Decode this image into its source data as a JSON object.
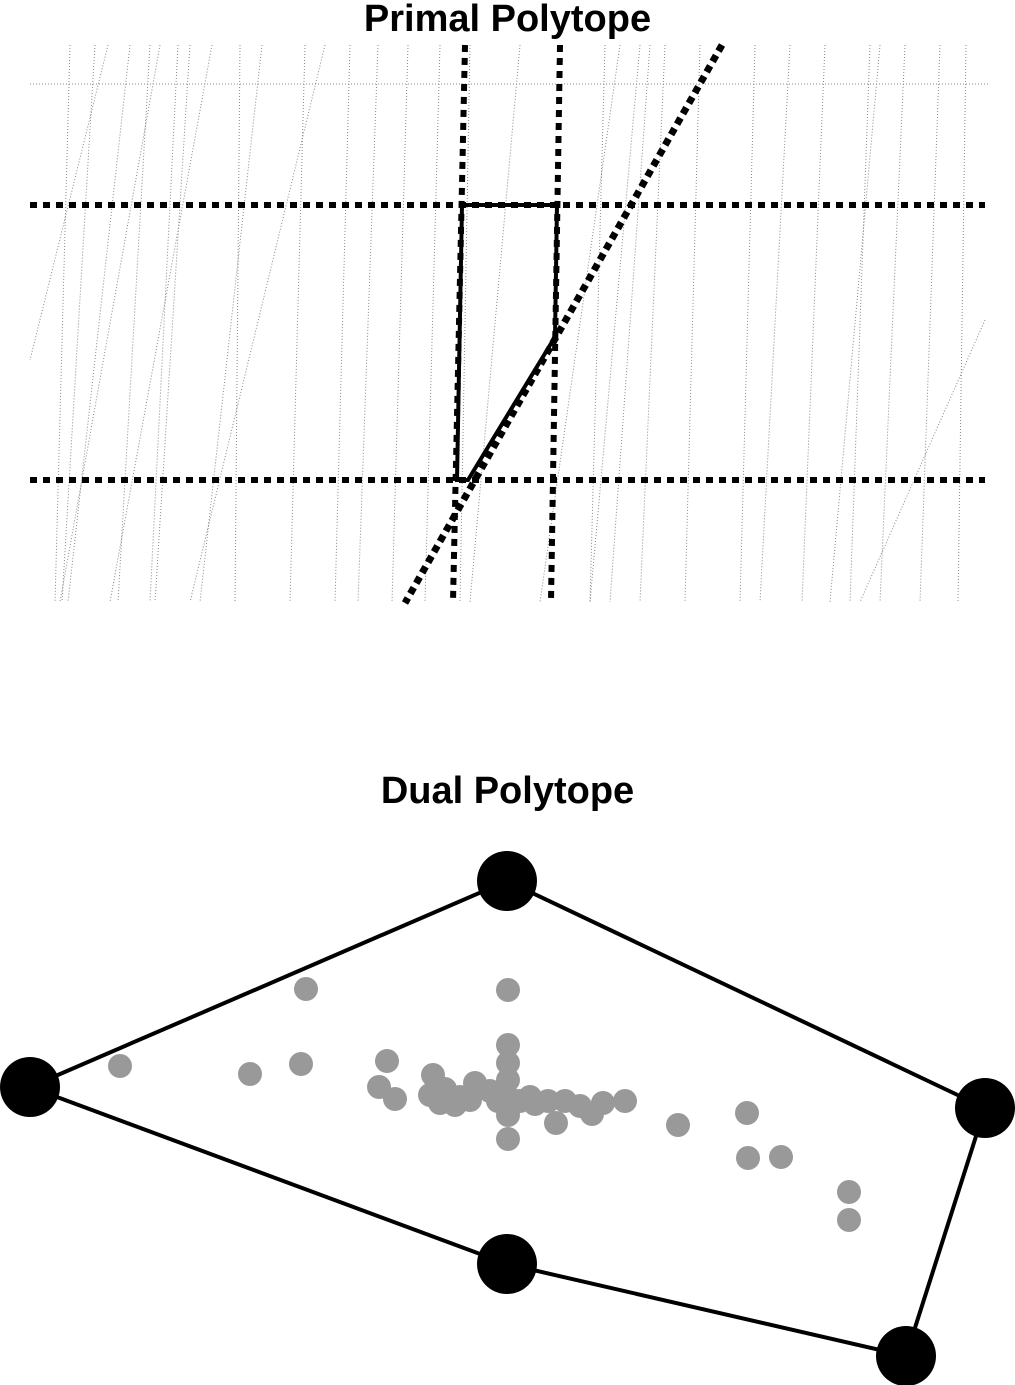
{
  "primal": {
    "title": "Primal Polytope"
  },
  "dual": {
    "title": "Dual Polytope"
  },
  "colors": {
    "ink": "#000000",
    "interior_points": "#999999",
    "background_lines": "#888888"
  }
}
